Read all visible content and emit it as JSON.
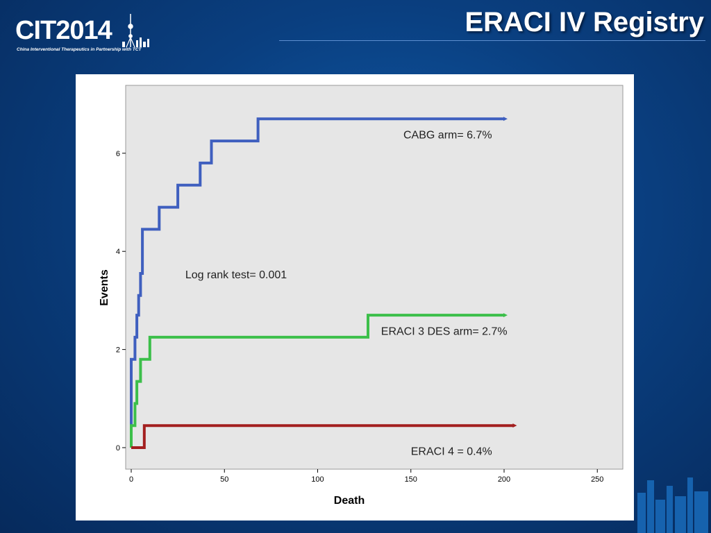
{
  "header": {
    "logo_text": "CIT2014",
    "logo_tagline": "China Interventional Therapeutics in Partnership with TCT",
    "title": "ERACI IV Registry"
  },
  "chart_data": {
    "type": "line",
    "xlabel": "Death",
    "ylabel": "Events",
    "xlim": [
      0,
      255
    ],
    "ylim": [
      -0.3,
      7.3
    ],
    "xticks": [
      0,
      50,
      100,
      150,
      200,
      250
    ],
    "yticks": [
      0,
      2,
      4,
      6
    ],
    "grid": false,
    "step": true,
    "series": [
      {
        "name": "CABG arm",
        "color": "#3f5fbf",
        "points": [
          [
            0,
            0
          ],
          [
            0,
            1.8
          ],
          [
            2,
            1.8
          ],
          [
            2,
            2.25
          ],
          [
            3,
            2.25
          ],
          [
            3,
            2.7
          ],
          [
            4,
            2.7
          ],
          [
            4,
            3.1
          ],
          [
            5,
            3.1
          ],
          [
            5,
            3.55
          ],
          [
            6,
            3.55
          ],
          [
            6,
            4.45
          ],
          [
            15,
            4.45
          ],
          [
            15,
            4.9
          ],
          [
            25,
            4.9
          ],
          [
            25,
            5.35
          ],
          [
            37,
            5.35
          ],
          [
            37,
            5.8
          ],
          [
            43,
            5.8
          ],
          [
            43,
            6.25
          ],
          [
            68,
            6.25
          ],
          [
            68,
            6.7
          ],
          [
            200,
            6.7
          ]
        ]
      },
      {
        "name": "ERACI 3 DES arm",
        "color": "#3cbf4a",
        "points": [
          [
            0,
            0
          ],
          [
            0,
            0.45
          ],
          [
            2,
            0.45
          ],
          [
            2,
            0.9
          ],
          [
            3,
            0.9
          ],
          [
            3,
            1.35
          ],
          [
            5,
            1.35
          ],
          [
            5,
            1.8
          ],
          [
            10,
            1.8
          ],
          [
            10,
            2.25
          ],
          [
            127,
            2.25
          ],
          [
            127,
            2.7
          ],
          [
            200,
            2.7
          ]
        ]
      },
      {
        "name": "ERACI 4",
        "color": "#a31f1f",
        "points": [
          [
            0,
            0
          ],
          [
            7,
            0
          ],
          [
            7,
            0.45
          ],
          [
            205,
            0.45
          ]
        ]
      }
    ],
    "annotations": [
      {
        "text": "CABG arm= 6.7%",
        "x": 146,
        "y": 6.3
      },
      {
        "text": "Log rank test= 0.001",
        "x": 29,
        "y": 3.45
      },
      {
        "text": "ERACI 3 DES arm= 2.7%",
        "x": 134,
        "y": 2.3
      },
      {
        "text": "ERACI 4 = 0.4%",
        "x": 150,
        "y": -0.15
      }
    ]
  }
}
